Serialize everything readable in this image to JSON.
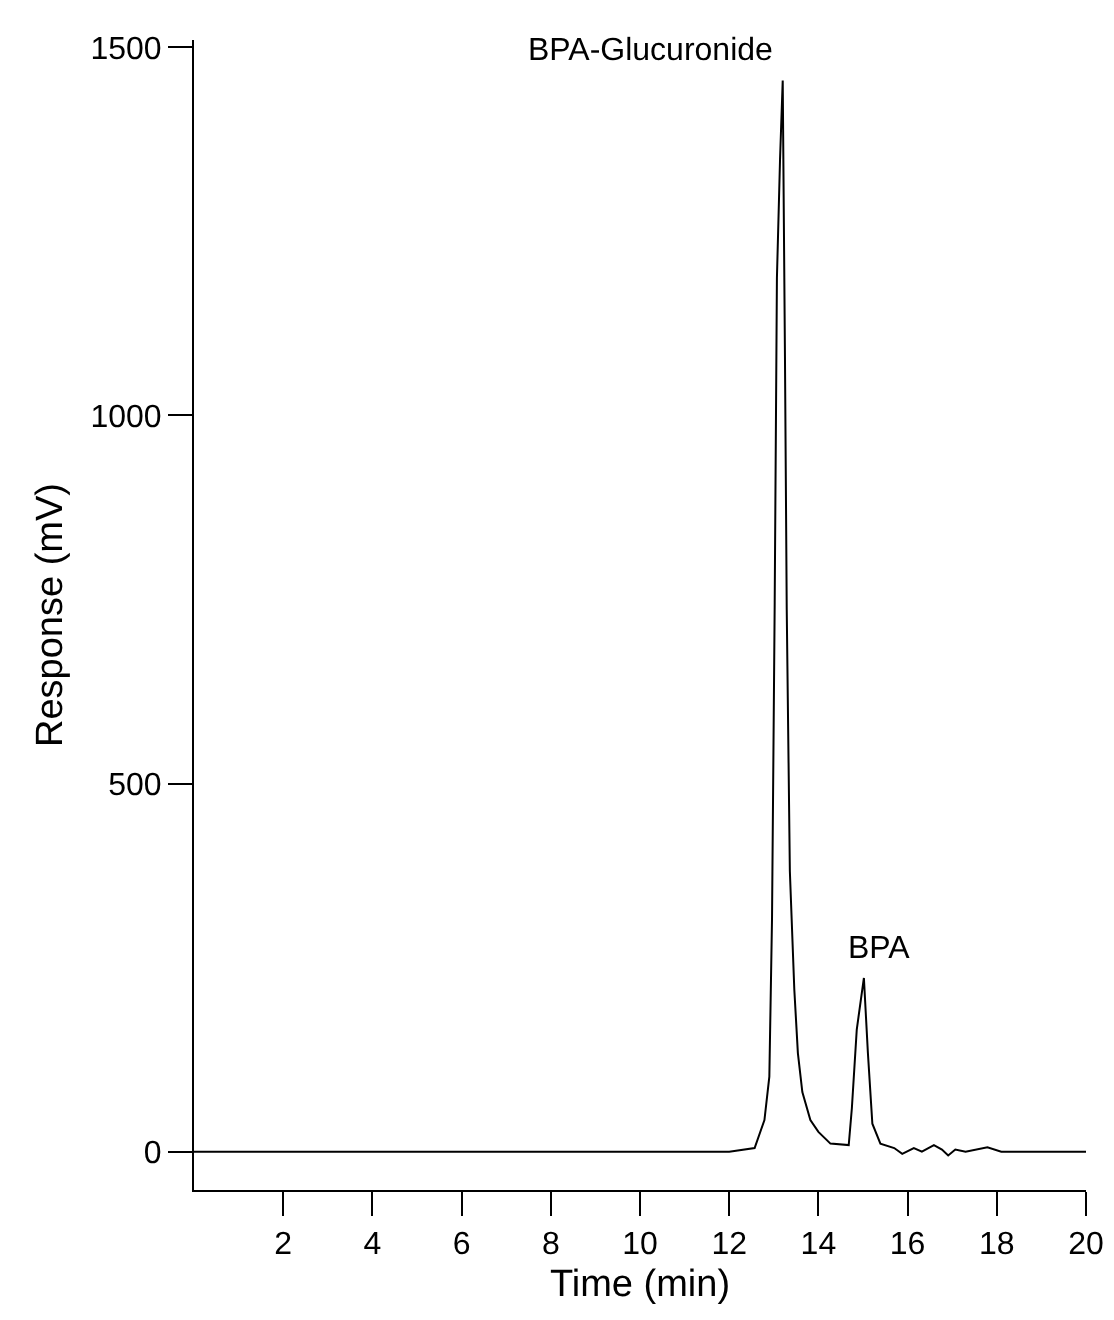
{
  "chart_data": {
    "type": "line",
    "xlabel": "Time (min)",
    "ylabel": "Response (mV)",
    "x": [
      0,
      12.0,
      12.57,
      12.79,
      12.9,
      12.96,
      13.02,
      13.07,
      13.14,
      13.2,
      13.25,
      13.29,
      13.36,
      13.46,
      13.54,
      13.64,
      13.82,
      14.0,
      14.27,
      14.68,
      14.75,
      14.86,
      15.02,
      15.11,
      15.21,
      15.39,
      15.7,
      15.88,
      16.14,
      16.32,
      16.59,
      16.77,
      16.91,
      17.07,
      17.3,
      17.79,
      18.1,
      20
    ],
    "series": [
      {
        "color": "#000000",
        "values": [
          0,
          0,
          5,
          43,
          102,
          317,
          746,
          1187,
          1348,
          1455,
          1080,
          736,
          381,
          220,
          134,
          81,
          43,
          27,
          11,
          9,
          59,
          166,
          236,
          134,
          38,
          11,
          5,
          -3,
          5,
          0,
          9,
          3,
          -5,
          3,
          0,
          6,
          0,
          0
        ]
      }
    ],
    "xlim": [
      0,
      20
    ],
    "xticks": [
      2,
      4,
      6,
      8,
      10,
      12,
      14,
      16,
      18,
      20
    ],
    "ylim": [
      -52,
      1510
    ],
    "yticks": [
      0,
      500,
      1000,
      1500
    ],
    "marker": "none",
    "line_style": "solid",
    "annotations": [
      {
        "text": "BPA-Glucuronide",
        "x": 13.2,
        "y": 1455
      },
      {
        "text": "BPA",
        "x": 15.02,
        "y": 236
      }
    ]
  }
}
